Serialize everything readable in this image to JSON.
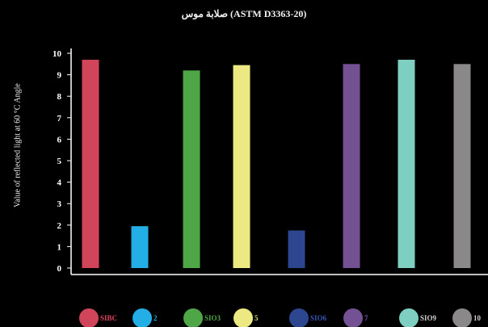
{
  "chart_data": {
    "type": "bar",
    "title": "صلابة موس (ASTM D3363-20)",
    "xlabel": "",
    "ylabel": "Value of reflected light at 60 °C Angle",
    "ylim": [
      0,
      10
    ],
    "yticks": [
      "0",
      "1",
      "2",
      "3",
      "4",
      "5",
      "6",
      "7",
      "8",
      "9",
      "10"
    ],
    "categories": [
      "SIBC",
      "SIO2",
      "SIO3",
      "SIO5",
      "SIO6",
      "SIO7",
      "SIO9",
      "SIO10"
    ],
    "legend_texts": [
      "SIBC",
      "2",
      "SIO3",
      "5",
      "SIO6",
      "7",
      "SIO9",
      "10"
    ],
    "values": [
      9.7,
      1.95,
      9.2,
      9.45,
      1.75,
      9.5,
      9.7,
      9.5
    ],
    "colors": [
      "#d1455a",
      "#23aee5",
      "#4ea647",
      "#ece882",
      "#2d4690",
      "#735192",
      "#7ecfc1",
      "#8a8888"
    ],
    "legend_label_colors": [
      "#e0465a",
      "#23aee5",
      "#4ea647",
      "#e8e27d",
      "#3a56b8",
      "#7a57a0",
      "#cfcfcf",
      "#cfcfcf"
    ],
    "legend_position": "bottom",
    "grid": false
  }
}
